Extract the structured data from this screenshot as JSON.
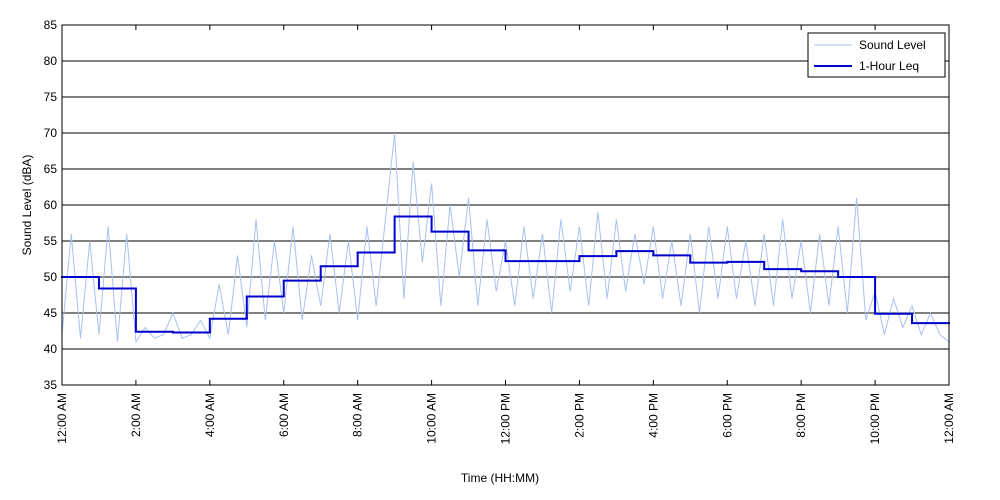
{
  "chart_data": {
    "type": "line",
    "xlabel": "Time (HH:MM)",
    "ylabel": "Sound Level (dBA)",
    "xlim": [
      0,
      24
    ],
    "xticks": [
      {
        "value": 0,
        "label": "12:00 AM"
      },
      {
        "value": 2,
        "label": "2:00 AM"
      },
      {
        "value": 4,
        "label": "4:00 AM"
      },
      {
        "value": 6,
        "label": "6:00 AM"
      },
      {
        "value": 8,
        "label": "8:00 AM"
      },
      {
        "value": 10,
        "label": "10:00 AM"
      },
      {
        "value": 12,
        "label": "12:00 PM"
      },
      {
        "value": 14,
        "label": "2:00 PM"
      },
      {
        "value": 16,
        "label": "4:00 PM"
      },
      {
        "value": 18,
        "label": "6:00 PM"
      },
      {
        "value": 20,
        "label": "8:00 PM"
      },
      {
        "value": 22,
        "label": "10:00 PM"
      },
      {
        "value": 24,
        "label": "12:00 AM"
      }
    ],
    "ylim": [
      35,
      85
    ],
    "yticks": [
      35,
      40,
      45,
      50,
      55,
      60,
      65,
      70,
      75,
      80,
      85
    ],
    "grid": true,
    "legend": "upper right",
    "series": [
      {
        "name": "Sound Level",
        "color": "#a9c1f0",
        "style": "line",
        "x": [
          0,
          0.25,
          0.5,
          0.75,
          1,
          1.25,
          1.5,
          1.75,
          2,
          2.25,
          2.5,
          2.75,
          3,
          3.25,
          3.5,
          3.75,
          4,
          4.25,
          4.5,
          4.75,
          5,
          5.25,
          5.5,
          5.75,
          6,
          6.25,
          6.5,
          6.75,
          7,
          7.25,
          7.5,
          7.75,
          8,
          8.25,
          8.5,
          8.75,
          9,
          9.25,
          9.5,
          9.75,
          10,
          10.25,
          10.5,
          10.75,
          11,
          11.25,
          11.5,
          11.75,
          12,
          12.25,
          12.5,
          12.75,
          13,
          13.25,
          13.5,
          13.75,
          14,
          14.25,
          14.5,
          14.75,
          15,
          15.25,
          15.5,
          15.75,
          16,
          16.25,
          16.5,
          16.75,
          17,
          17.25,
          17.5,
          17.75,
          18,
          18.25,
          18.5,
          18.75,
          19,
          19.25,
          19.5,
          19.75,
          20,
          20.25,
          20.5,
          20.75,
          21,
          21.25,
          21.5,
          21.75,
          22,
          22.25,
          22.5,
          22.75,
          23,
          23.25,
          23.5,
          23.75,
          24
        ],
        "values": [
          42,
          56,
          41.5,
          55,
          42,
          57,
          41,
          56,
          41,
          43,
          41.5,
          42,
          45,
          41.5,
          42,
          44,
          41.5,
          49,
          42,
          53,
          43,
          58,
          44,
          55,
          45,
          57,
          44,
          53,
          46,
          56,
          45,
          55,
          44,
          57,
          46,
          58,
          70,
          47,
          66,
          52,
          63,
          46,
          60,
          50,
          61,
          46,
          58,
          48,
          55,
          46,
          57,
          47,
          56,
          45,
          58,
          48,
          57,
          46,
          59,
          47,
          58,
          48,
          56,
          49,
          57,
          47,
          55,
          46,
          56,
          45,
          57,
          47,
          57,
          47,
          55,
          46,
          56,
          46,
          58,
          47,
          55,
          45,
          56,
          46,
          57,
          45,
          61,
          44,
          48,
          42,
          47,
          43,
          46,
          42,
          45,
          42,
          41
        ]
      },
      {
        "name": "1-Hour Leq",
        "color": "#0000cc",
        "style": "step",
        "x": [
          0,
          1,
          2,
          3,
          4,
          5,
          6,
          7,
          8,
          9,
          10,
          11,
          12,
          13,
          14,
          15,
          16,
          17,
          18,
          19,
          20,
          21,
          22,
          23
        ],
        "values": [
          50.0,
          48.4,
          42.4,
          42.3,
          44.2,
          47.3,
          49.5,
          51.5,
          53.4,
          58.4,
          56.3,
          53.7,
          52.2,
          52.2,
          52.9,
          53.6,
          53.0,
          52.0,
          52.1,
          51.1,
          50.8,
          50.0,
          44.9,
          43.6
        ]
      }
    ]
  }
}
